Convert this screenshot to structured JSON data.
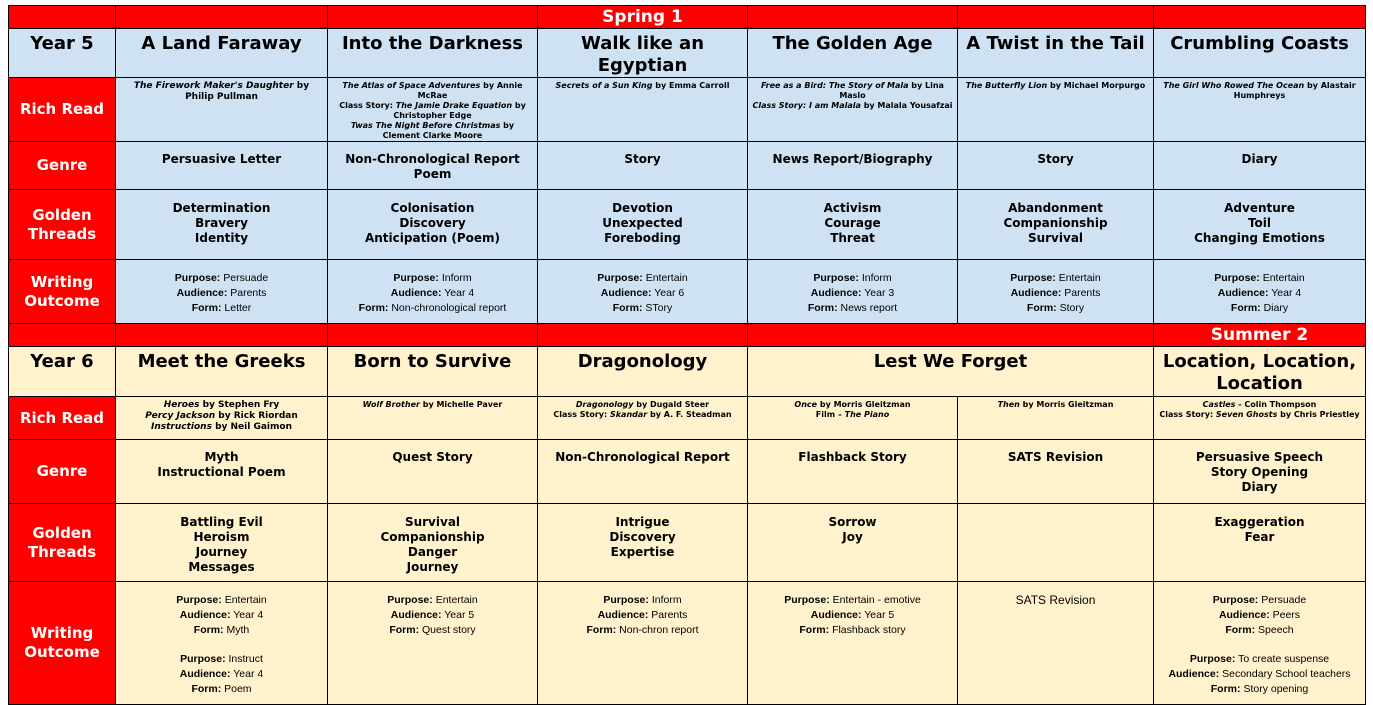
{
  "colors": {
    "header_red": "#ff0000",
    "year5_bg": "#cfe2f3",
    "year6_bg": "#fff2cc"
  },
  "labels": {
    "purpose": "Purpose:",
    "audience": "Audience:",
    "form": "Form:"
  },
  "row_labels": {
    "rich_read": "Rich Read",
    "genre": "Genre",
    "golden_threads": "Golden Threads",
    "writing_outcome": "Writing Outcome"
  },
  "sections": [
    {
      "cls": "s5",
      "term_cells": [
        {
          "text": "",
          "span": 1
        },
        {
          "text": "",
          "span": 1
        },
        {
          "text": "",
          "span": 1
        },
        {
          "text": "Spring 1",
          "span": 1
        },
        {
          "text": "",
          "span": 1
        },
        {
          "text": "",
          "span": 1
        },
        {
          "text": "",
          "span": 1
        }
      ],
      "year": "Year 5",
      "topics": [
        {
          "title": "A Land Faraway",
          "span": 1
        },
        {
          "title": "Into the Darkness",
          "span": 1
        },
        {
          "title": "Walk like an Egyptian",
          "span": 1
        },
        {
          "title": "The Golden Age",
          "span": 1
        },
        {
          "title": "A Twist in the Tail",
          "span": 1
        },
        {
          "title": "Crumbling Coasts",
          "span": 1
        }
      ],
      "rich_read": [
        [
          [
            {
              "t": "The Firework Maker's Daughter",
              "i": true
            },
            {
              "t": " by Philip Pullman"
            }
          ]
        ],
        [
          [
            {
              "t": "The Atlas of Space Adventures",
              "i": true
            },
            {
              "t": " by Annie McRae"
            }
          ],
          [
            {
              "t": "Class Story: "
            },
            {
              "t": "The Jamie Drake Equation",
              "i": true
            },
            {
              "t": " by Christopher Edge"
            }
          ],
          [
            {
              "t": "Twas The Night Before Christmas",
              "i": true
            },
            {
              "t": " by Clement Clarke Moore"
            }
          ]
        ],
        [
          [
            {
              "t": "Secrets of a Sun King",
              "i": true
            },
            {
              "t": " by Emma Carroll"
            }
          ]
        ],
        [
          [
            {
              "t": "Free as a Bird: The Story of Mala",
              "i": true
            },
            {
              "t": " by Lina Maslo"
            }
          ],
          [
            {
              "t": "Class Story: I am Malala",
              "i": true
            },
            {
              "t": " by Malala Yousafzai"
            }
          ]
        ],
        [
          [
            {
              "t": "The Butterfly Lion",
              "i": true
            },
            {
              "t": " by Michael Morpurgo"
            }
          ]
        ],
        [
          [
            {
              "t": "The Girl Who Rowed The Ocean",
              "i": true
            },
            {
              "t": " by Alastair Humphreys"
            }
          ]
        ]
      ],
      "genre": [
        [
          "Persuasive Letter"
        ],
        [
          "Non-Chronological Report",
          "Poem"
        ],
        [
          "Story"
        ],
        [
          "News Report/Biography"
        ],
        [
          "Story"
        ],
        [
          "Diary"
        ]
      ],
      "golden_threads": [
        [
          "Determination",
          "Bravery",
          "Identity"
        ],
        [
          "Colonisation",
          "Discovery",
          "Anticipation (Poem)"
        ],
        [
          "Devotion",
          "Unexpected",
          "Foreboding"
        ],
        [
          "Activism",
          "Courage",
          "Threat"
        ],
        [
          "Abandonment",
          "Companionship",
          "Survival"
        ],
        [
          "Adventure",
          "Toil",
          "Changing Emotions"
        ]
      ],
      "writing_outcome": [
        {
          "blocks": [
            {
              "purpose": "Persuade",
              "audience": "Parents",
              "form": "Letter"
            }
          ]
        },
        {
          "blocks": [
            {
              "purpose": "Inform",
              "audience": "Year 4",
              "form": "Non-chronological report"
            }
          ]
        },
        {
          "blocks": [
            {
              "purpose": "Entertain",
              "audience": "Year 6",
              "form": "STory"
            }
          ]
        },
        {
          "blocks": [
            {
              "purpose": "Inform",
              "audience": "Year 3",
              "form": "News report"
            }
          ]
        },
        {
          "blocks": [
            {
              "purpose": "Entertain",
              "audience": "Parents",
              "form": "Story"
            }
          ]
        },
        {
          "blocks": [
            {
              "purpose": "Entertain",
              "audience": "Year 4",
              "form": "Diary"
            }
          ]
        }
      ]
    },
    {
      "cls": "s6",
      "term_cells": [
        {
          "text": "",
          "span": 1
        },
        {
          "text": "",
          "span": 1
        },
        {
          "text": "",
          "span": 1
        },
        {
          "text": "",
          "span": 1
        },
        {
          "text": "",
          "span": 2
        },
        {
          "text": "Summer 2",
          "span": 1
        }
      ],
      "year": "Year 6",
      "topics": [
        {
          "title": "Meet the Greeks",
          "span": 1
        },
        {
          "title": "Born to Survive",
          "span": 1
        },
        {
          "title": "Dragonology",
          "span": 1
        },
        {
          "title": "Lest We Forget",
          "span": 2
        },
        {
          "title": "Location, Location, Location",
          "span": 1
        }
      ],
      "rich_read": [
        [
          [
            {
              "t": "Heroes",
              "i": true
            },
            {
              "t": " by Stephen Fry"
            }
          ],
          [
            {
              "t": "Percy Jackson",
              "i": true
            },
            {
              "t": " by Rick Riordan"
            }
          ],
          [
            {
              "t": "Instructions",
              "i": true
            },
            {
              "t": " by Neil Gaimon"
            }
          ]
        ],
        [
          [
            {
              "t": "Wolf Brother",
              "i": true
            },
            {
              "t": " by Michelle Paver"
            }
          ]
        ],
        [
          [
            {
              "t": "Dragonology",
              "i": true
            },
            {
              "t": " by Dugald Steer"
            }
          ],
          [
            {
              "t": "Class Story: "
            },
            {
              "t": "Skandar",
              "i": true
            },
            {
              "t": " by A. F. Steadman"
            }
          ]
        ],
        [
          [
            {
              "t": "Once",
              "i": true
            },
            {
              "t": " by Morris Gleitzman"
            }
          ],
          [
            {
              "t": "Film – "
            },
            {
              "t": "The Piano",
              "i": true
            }
          ]
        ],
        [
          [
            {
              "t": "Then",
              "i": true
            },
            {
              "t": " by Morris Gleitzman"
            }
          ]
        ],
        [
          [
            {
              "t": "Castles",
              "i": true
            },
            {
              "t": " - Colin Thompson"
            }
          ],
          [
            {
              "t": "Class Story: "
            },
            {
              "t": "Seven Ghosts",
              "i": true
            },
            {
              "t": " by Chris Priestley"
            }
          ]
        ]
      ],
      "genre": [
        [
          "Myth",
          "Instructional Poem"
        ],
        [
          "Quest Story"
        ],
        [
          "Non-Chronological Report"
        ],
        [
          "Flashback Story"
        ],
        [
          "SATS Revision"
        ],
        [
          "Persuasive Speech",
          "Story Opening",
          "Diary"
        ]
      ],
      "golden_threads": [
        [
          "Battling Evil",
          "Heroism",
          "Journey",
          "Messages"
        ],
        [
          "Survival",
          "Companionship",
          "Danger",
          "Journey"
        ],
        [
          "Intrigue",
          "Discovery",
          "Expertise"
        ],
        [
          "Sorrow",
          "Joy"
        ],
        [],
        [
          "Exaggeration",
          "Fear"
        ]
      ],
      "writing_outcome": [
        {
          "blocks": [
            {
              "purpose": "Entertain",
              "audience": "Year 4",
              "form": "Myth"
            },
            {
              "purpose": "Instruct",
              "audience": "Year 4",
              "form": "Poem"
            }
          ]
        },
        {
          "blocks": [
            {
              "purpose": "Entertain",
              "audience": "Year 5",
              "form": "Quest story"
            }
          ]
        },
        {
          "blocks": [
            {
              "purpose": "Inform",
              "audience": "Parents",
              "form": "Non-chron report"
            }
          ]
        },
        {
          "blocks": [
            {
              "purpose": "Entertain - emotive",
              "audience": "Year 5",
              "form": "Flashback story"
            }
          ]
        },
        {
          "plain": "SATS Revision"
        },
        {
          "blocks": [
            {
              "purpose": "Persuade",
              "audience": "Peers",
              "form": "Speech"
            },
            {
              "purpose": "To create suspense",
              "audience": "Secondary School teachers",
              "form": "Story opening"
            }
          ]
        }
      ]
    }
  ]
}
